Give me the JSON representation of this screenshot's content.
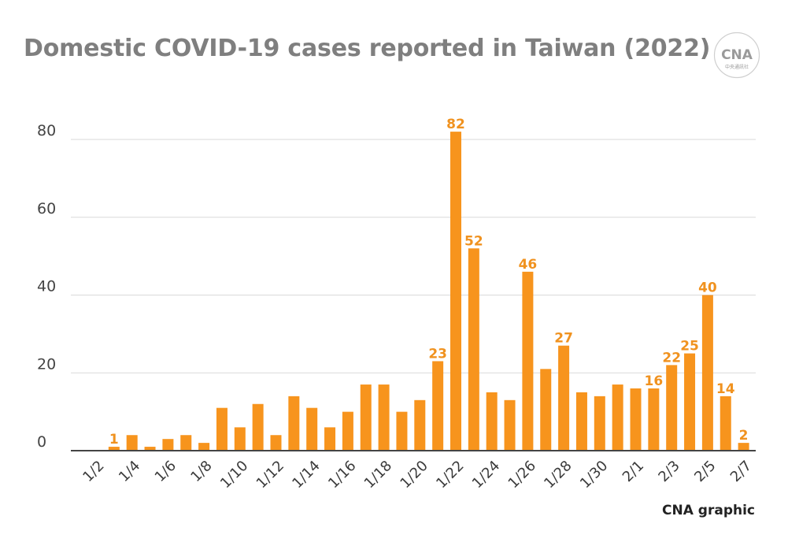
{
  "title": "Domestic COVID-19 cases reported in Taiwan (2022)",
  "credit": "CNA graphic",
  "logo": {
    "text": "CNA",
    "subtext": "中央通訊社",
    "icon": "cna-logo-icon"
  },
  "colors": {
    "bar": "#f7941d",
    "label": "#f0921f",
    "title": "#7f7f7f",
    "grid": "#d9d9d9",
    "axis": "#444444"
  },
  "chart_data": {
    "type": "bar",
    "title": "Domestic COVID-19 cases reported in Taiwan (2022)",
    "xlabel": "",
    "ylabel": "",
    "ylim": [
      0,
      80
    ],
    "yticks": [
      0,
      20,
      40,
      60,
      80
    ],
    "grid": true,
    "categories": [
      "1/2",
      "1/3",
      "1/4",
      "1/5",
      "1/6",
      "1/7",
      "1/8",
      "1/9",
      "1/10",
      "1/11",
      "1/12",
      "1/13",
      "1/14",
      "1/15",
      "1/16",
      "1/17",
      "1/18",
      "1/19",
      "1/20",
      "1/21",
      "1/22",
      "1/23",
      "1/24",
      "1/25",
      "1/26",
      "1/27",
      "1/28",
      "1/29",
      "1/30",
      "1/31",
      "2/1",
      "2/2",
      "2/3",
      "2/4",
      "2/5",
      "2/6",
      "2/7"
    ],
    "tick_labels": [
      "1/2",
      "1/4",
      "1/6",
      "1/8",
      "1/10",
      "1/12",
      "1/14",
      "1/16",
      "1/18",
      "1/20",
      "1/22",
      "1/24",
      "1/26",
      "1/28",
      "1/30",
      "2/1",
      "2/3",
      "2/5",
      "2/7"
    ],
    "values": [
      0,
      1,
      4,
      1,
      3,
      4,
      2,
      11,
      6,
      12,
      4,
      14,
      11,
      6,
      10,
      17,
      17,
      10,
      13,
      23,
      82,
      52,
      15,
      13,
      46,
      21,
      27,
      15,
      14,
      17,
      16,
      16,
      22,
      25,
      40,
      14,
      2
    ],
    "data_labels": [
      {
        "category": "1/3",
        "value": 1
      },
      {
        "category": "1/21",
        "value": 23
      },
      {
        "category": "1/22",
        "value": 82
      },
      {
        "category": "1/23",
        "value": 52
      },
      {
        "category": "1/26",
        "value": 46
      },
      {
        "category": "1/28",
        "value": 27
      },
      {
        "category": "2/2",
        "value": 16
      },
      {
        "category": "2/3",
        "value": 22
      },
      {
        "category": "2/4",
        "value": 25
      },
      {
        "category": "2/5",
        "value": 40
      },
      {
        "category": "2/6",
        "value": 14
      },
      {
        "category": "2/7",
        "value": 2
      }
    ]
  }
}
